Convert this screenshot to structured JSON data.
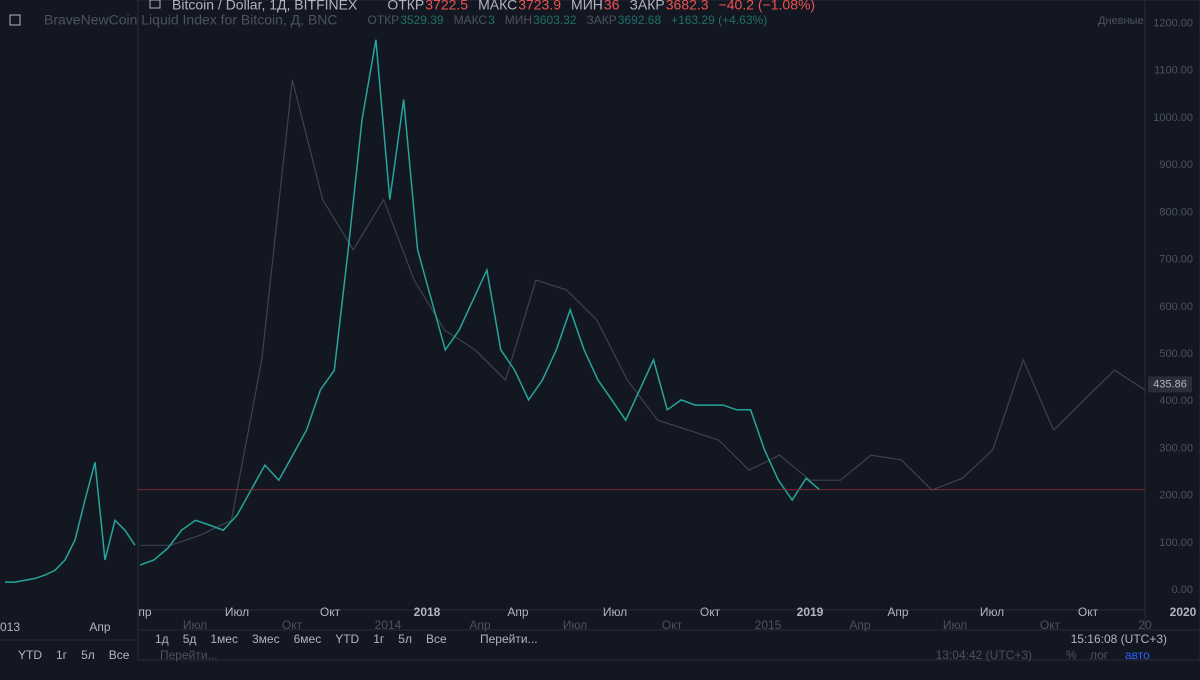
{
  "back_window": {
    "title": "BraveNewCoin Liquid Index for Bitcoin, Д, BNC",
    "ohlc": [
      {
        "key": "ОТКР",
        "value": "3529.39"
      },
      {
        "key": "МАКС",
        "value": "3"
      },
      {
        "key": "МИН",
        "value": "3603.32"
      },
      {
        "key": "ЗАКР",
        "value": "3692.68"
      }
    ],
    "change": "+163.29 (+4.63%)",
    "badge": "Дневные",
    "x_labels": [
      "013",
      "Апр",
      "Июл",
      "Окт",
      "2014",
      "Апр",
      "Июл",
      "Окт",
      "2015",
      "Апр",
      "Июл",
      "Окт",
      "20"
    ],
    "timeframes": [
      "YTD",
      "1г",
      "5л",
      "Все"
    ],
    "goto": "Перейти...",
    "clock": "13:04:42 (UTC+3)",
    "buttons": [
      "%",
      "лог",
      "авто"
    ]
  },
  "main_window": {
    "title": "Bitcoin / Dollar, 1Д, BITFINEX",
    "ohlc": [
      {
        "key": "ОТКР",
        "value": "3722.5"
      },
      {
        "key": "МАКС",
        "value": "3723.9"
      },
      {
        "key": "МИН",
        "value": "36"
      },
      {
        "key": "ЗАКР",
        "value": "3682.3"
      }
    ],
    "change": "−40.2 (−1.08%)",
    "x_labels": [
      "пр",
      "Июл",
      "Окт",
      "2018",
      "Апр",
      "Июл",
      "Окт",
      "2019",
      "Апр",
      "Июл",
      "Окт",
      "2020"
    ],
    "timeframes": [
      "1д",
      "5д",
      "1мес",
      "3мес",
      "6мес",
      "YTD",
      "1г",
      "5л",
      "Все"
    ],
    "goto": "Перейти...",
    "clock": "15:16:08 (UTC+3)"
  },
  "chart_data": {
    "type": "line",
    "ylim": [
      -42,
      1250
    ],
    "yticks": [
      {
        "value": 0,
        "label": "0.00"
      },
      {
        "value": 100,
        "label": "100.00"
      },
      {
        "value": 200,
        "label": "200.00"
      },
      {
        "value": 300,
        "label": "300.00"
      },
      {
        "value": 400,
        "label": "400.00"
      },
      {
        "value": 500,
        "label": "500.00"
      },
      {
        "value": 600,
        "label": "600.00"
      },
      {
        "value": 700,
        "label": "700.00"
      },
      {
        "value": 800,
        "label": "800.00"
      },
      {
        "value": 900,
        "label": "900.00"
      },
      {
        "value": 1000,
        "label": "1000.00"
      },
      {
        "value": 1100,
        "label": "1100.00"
      },
      {
        "value": 1200,
        "label": "1200.00"
      }
    ],
    "price_line": 213,
    "last_price": 435.86,
    "series": [
      {
        "color": "#3e4250",
        "values": [
          95,
          95,
          117,
          148,
          488,
          1081,
          827,
          721,
          827,
          657,
          551,
          509,
          445,
          657,
          636,
          572,
          445,
          360,
          339,
          318,
          254,
          286,
          233,
          233,
          286,
          276,
          212,
          237,
          297,
          488,
          339,
          403,
          466,
          424
        ]
      },
      {
        "color": "#26a69a",
        "values": [
          53,
          64,
          89,
          127,
          148,
          138,
          127,
          159,
          212,
          265,
          233,
          286,
          339,
          424,
          466,
          721,
          996,
          1166,
          827,
          1039,
          721,
          615,
          509,
          551,
          615,
          678,
          509,
          466,
          403,
          445,
          509,
          594,
          509,
          445,
          403,
          360,
          424,
          488,
          382,
          403,
          392,
          392,
          392,
          382,
          382,
          297,
          233,
          191,
          237,
          212
        ]
      },
      {
        "color": "#26a69a",
        "values": [
          17,
          17,
          21,
          25,
          32,
          42,
          64,
          106,
          191,
          271,
          64,
          148,
          127,
          95
        ]
      }
    ]
  }
}
